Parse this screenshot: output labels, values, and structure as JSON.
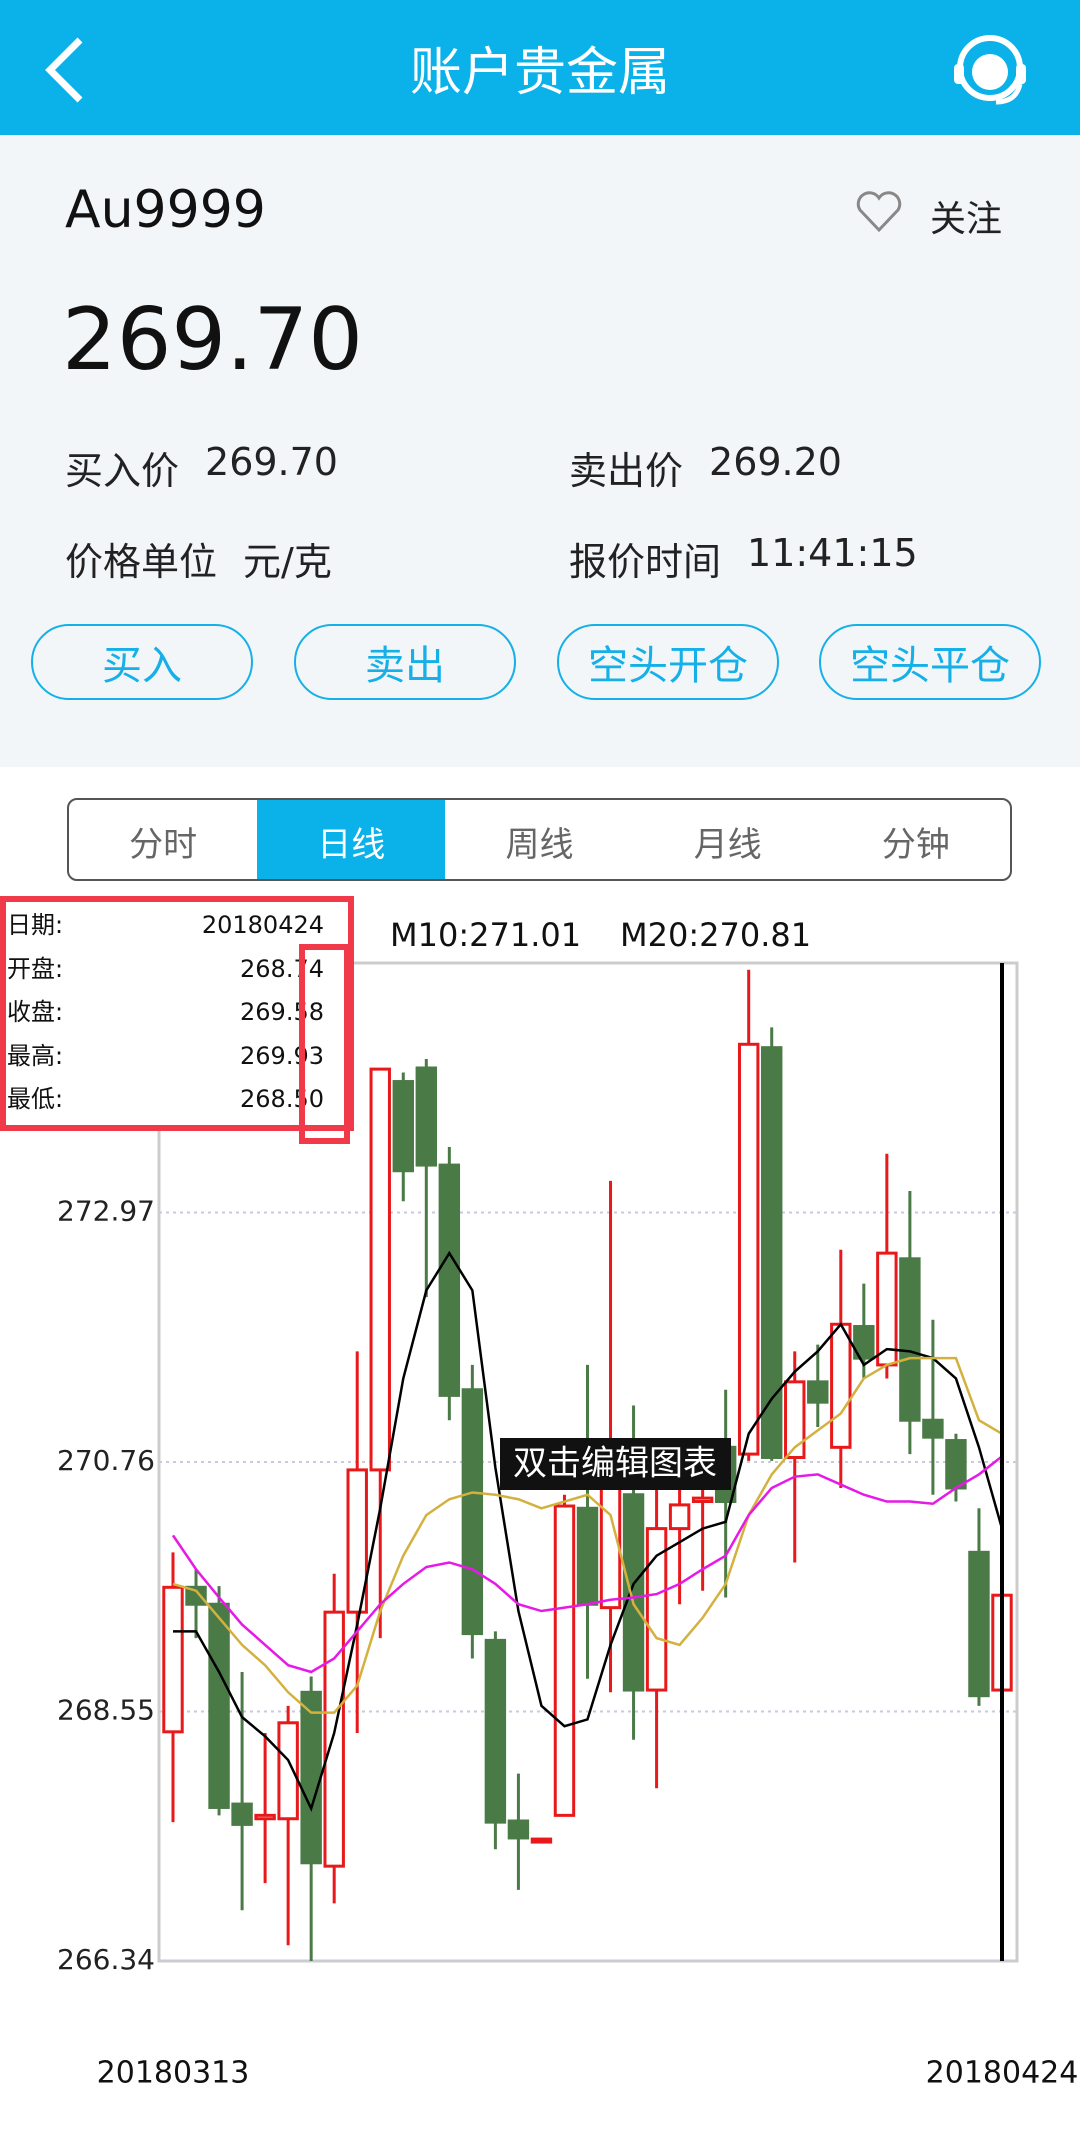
{
  "header": {
    "title": "账户贵金属"
  },
  "quote": {
    "symbol": "Au9999",
    "follow": "关注",
    "price": "269.70",
    "fields": [
      {
        "label": "买入价",
        "value": "269.70"
      },
      {
        "label": "卖出价",
        "value": "269.20"
      },
      {
        "label": "价格单位",
        "value": "元/克"
      },
      {
        "label": "报价时间",
        "value": "11:41:15"
      }
    ]
  },
  "actions": [
    "买入",
    "卖出",
    "空头开仓",
    "空头平仓"
  ],
  "tabs": {
    "items": [
      "分时",
      "日线",
      "周线",
      "月线",
      "分钟"
    ],
    "selected": 1
  },
  "chart_data": {
    "type": "candlestick",
    "categories": [
      "20180313",
      null,
      null,
      null,
      null,
      null,
      null,
      null,
      null,
      null,
      null,
      null,
      null,
      null,
      null,
      null,
      null,
      null,
      null,
      null,
      null,
      null,
      null,
      null,
      null,
      null,
      null,
      null,
      null,
      null,
      null,
      null,
      null,
      null,
      null,
      null,
      "20180424"
    ],
    "open": [
      268.37,
      269.65,
      269.5,
      267.73,
      267.6,
      267.6,
      268.72,
      267.18,
      269.43,
      270.69,
      274.13,
      274.25,
      273.39,
      271.4,
      269.18,
      267.58,
      267.4,
      267.63,
      270.35,
      269.47,
      270.47,
      268.74,
      270.17,
      270.41,
      270.89,
      270.83,
      274.43,
      270.8,
      271.47,
      270.89,
      271.96,
      271.62,
      272.56,
      271.13,
      270.95,
      269.96,
      268.74
    ],
    "high": [
      269.96,
      269.81,
      269.66,
      268.9,
      268.36,
      268.6,
      268.86,
      269.77,
      271.74,
      274.24,
      274.21,
      274.33,
      273.55,
      271.62,
      269.26,
      268.0,
      267.43,
      270.47,
      271.62,
      273.25,
      271.26,
      270.53,
      270.59,
      270.53,
      271.4,
      275.12,
      274.61,
      271.74,
      271.8,
      272.64,
      272.34,
      273.49,
      273.16,
      272.02,
      271.01,
      270.35,
      269.93
    ],
    "low": [
      267.57,
      269.2,
      267.63,
      266.79,
      267.03,
      266.48,
      266.34,
      266.85,
      268.36,
      269.2,
      273.07,
      272.22,
      271.13,
      269.02,
      267.33,
      266.97,
      267.39,
      267.63,
      268.84,
      268.72,
      268.3,
      267.87,
      269.5,
      269.62,
      269.56,
      270.77,
      270.77,
      269.87,
      271.07,
      270.53,
      271.5,
      271.5,
      270.83,
      270.47,
      270.41,
      268.6,
      268.5
    ],
    "close": [
      269.65,
      269.5,
      267.7,
      267.55,
      267.63,
      268.45,
      267.21,
      269.43,
      270.69,
      274.24,
      273.34,
      273.39,
      271.35,
      269.24,
      267.57,
      267.43,
      267.42,
      270.37,
      269.5,
      270.53,
      268.74,
      270.17,
      270.38,
      270.44,
      270.41,
      274.46,
      270.8,
      271.47,
      271.29,
      271.98,
      271.68,
      272.61,
      271.13,
      270.98,
      270.53,
      268.69,
      269.58
    ],
    "up_color": "#e8191b",
    "down_color": "#4a7a46",
    "series": [
      {
        "color": "#000000",
        "values": [
          269.26,
          269.26,
          268.9,
          268.5,
          268.33,
          268.12,
          267.69,
          268.36,
          269.32,
          270.35,
          271.5,
          272.28,
          272.61,
          272.28,
          270.71,
          269.44,
          268.6,
          268.42,
          268.48,
          269.14,
          269.68,
          269.93,
          270.05,
          270.17,
          270.23,
          271.01,
          271.32,
          271.56,
          271.74,
          271.98,
          271.62,
          271.76,
          271.74,
          271.68,
          271.5,
          270.89,
          270.17
        ]
      },
      {
        "color": "#d4b13f",
        "values": [
          269.68,
          269.62,
          269.38,
          269.14,
          268.96,
          268.72,
          268.54,
          268.54,
          268.78,
          269.44,
          269.93,
          270.29,
          270.43,
          270.49,
          270.47,
          270.43,
          270.35,
          270.41,
          270.47,
          270.29,
          269.5,
          269.2,
          269.14,
          269.38,
          269.68,
          270.29,
          270.65,
          270.89,
          271.04,
          271.19,
          271.5,
          271.62,
          271.68,
          271.68,
          271.68,
          271.13,
          271.01
        ]
      },
      {
        "color": "#e619e6",
        "values": [
          270.11,
          269.81,
          269.56,
          269.32,
          269.14,
          268.96,
          268.9,
          269.02,
          269.26,
          269.5,
          269.68,
          269.83,
          269.87,
          269.81,
          269.68,
          269.5,
          269.44,
          269.47,
          269.5,
          269.54,
          269.56,
          269.59,
          269.68,
          269.81,
          269.93,
          270.29,
          270.53,
          270.63,
          270.65,
          270.56,
          270.47,
          270.41,
          270.41,
          270.39,
          270.53,
          270.65,
          270.81
        ]
      }
    ],
    "ma_labels": [
      "M10:271.01",
      "M20:270.81"
    ],
    "info": [
      {
        "label": "日期:",
        "value": "20180424"
      },
      {
        "label": "开盘:",
        "value": "268.74"
      },
      {
        "label": "收盘:",
        "value": "269.58"
      },
      {
        "label": "最高:",
        "value": "269.93"
      },
      {
        "label": "最低:",
        "value": "268.50"
      }
    ],
    "annotation": "双击编辑图表",
    "ylim": [
      266.34,
      275.18
    ],
    "yticks": [
      266.34,
      268.55,
      270.76,
      272.97
    ],
    "grid": true
  }
}
